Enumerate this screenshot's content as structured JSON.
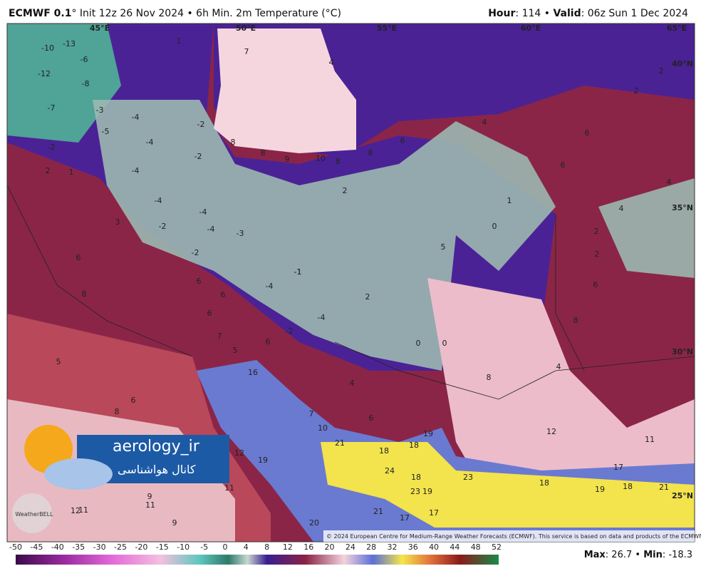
{
  "header": {
    "left": [
      "ECMWF 0.1",
      "° Init 12z 26 Nov 2024 • 6h Min. 2m Temperature (°C)"
    ],
    "right": [
      "Hour",
      ": 114 • ",
      "Valid",
      ": 06z Sun 1 Dec 2024"
    ]
  },
  "map": {
    "longitudes": [
      "45°E",
      "50°E",
      "55°E",
      "60°E",
      "65°E"
    ],
    "latitudes": [
      "40°N",
      "35°N",
      "30°N",
      "25°N"
    ],
    "values": [
      -10,
      -13,
      -6,
      -12,
      -8,
      -7,
      -3,
      -4,
      -5,
      -2,
      -4,
      -2,
      -4,
      2,
      1,
      -4,
      -4,
      -2,
      -4,
      -3,
      -2,
      3,
      6,
      8,
      6,
      6,
      -4,
      -1,
      6,
      7,
      5,
      6,
      -2,
      -4,
      2,
      0,
      0,
      5,
      0,
      4,
      6,
      6,
      1,
      4,
      4,
      2,
      2,
      6,
      8,
      4,
      8,
      4,
      16,
      5,
      8,
      6,
      7,
      10,
      6,
      12,
      11,
      12,
      19,
      21,
      18,
      18,
      19,
      24,
      18,
      19,
      23,
      23,
      18,
      17,
      19,
      18,
      21,
      11,
      9,
      11,
      11,
      12,
      9,
      20,
      17,
      17,
      21,
      4,
      7,
      1,
      2,
      2,
      8,
      8,
      9,
      10,
      8,
      8,
      6,
      2,
      -1,
      -2
    ]
  },
  "logo": {
    "name": "aerology_ir",
    "subtitle": "کانال هواشناسی",
    "brand": "WeatherBELL"
  },
  "copyright": "© 2024 European Centre for Medium-Range Weather Forecasts (ECMWF). This service is based on data and products of the ECMWF.",
  "colorbar": {
    "ticks": [
      -50,
      -45,
      -40,
      -35,
      -30,
      -25,
      -20,
      -15,
      -10,
      -5,
      0,
      4,
      8,
      12,
      16,
      20,
      24,
      28,
      32,
      36,
      40,
      44,
      48,
      52
    ]
  },
  "footer": [
    "Max",
    ": 26.7 • ",
    "Min",
    ": -18.3"
  ]
}
